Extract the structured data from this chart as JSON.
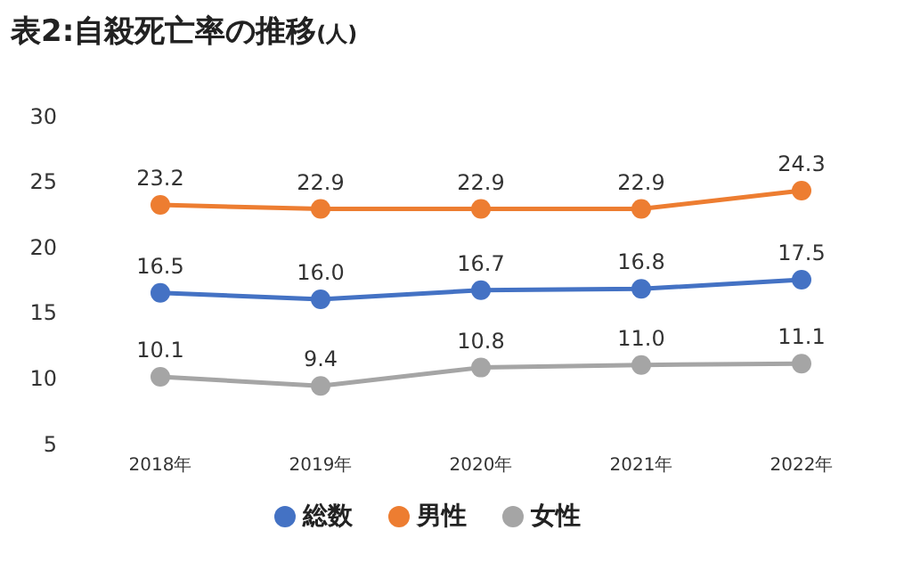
{
  "chart_data": {
    "type": "line",
    "title": "表2:自殺死亡率の推移",
    "subtitle": "(人)",
    "categories": [
      "2018年",
      "2019年",
      "2020年",
      "2021年",
      "2022年"
    ],
    "series": [
      {
        "name": "総数",
        "color": "#4472c4",
        "values": [
          16.5,
          16.0,
          16.7,
          16.8,
          17.5
        ],
        "value_labels": [
          "16.5",
          "16.0",
          "16.7",
          "16.8",
          "17.5"
        ]
      },
      {
        "name": "男性",
        "color": "#ed7d31",
        "values": [
          23.2,
          22.9,
          22.9,
          22.9,
          24.3
        ],
        "value_labels": [
          "23.2",
          "22.9",
          "22.9",
          "22.9",
          "24.3"
        ]
      },
      {
        "name": "女性",
        "color": "#a5a5a5",
        "values": [
          10.1,
          9.4,
          10.8,
          11.0,
          11.1
        ],
        "value_labels": [
          "10.1",
          "9.4",
          "10.8",
          "11.0",
          "11.1"
        ]
      }
    ],
    "ylim": [
      5,
      30
    ],
    "yticks": [
      5,
      10,
      15,
      20,
      25,
      30
    ],
    "legend": "bottom",
    "marker": "circle"
  }
}
